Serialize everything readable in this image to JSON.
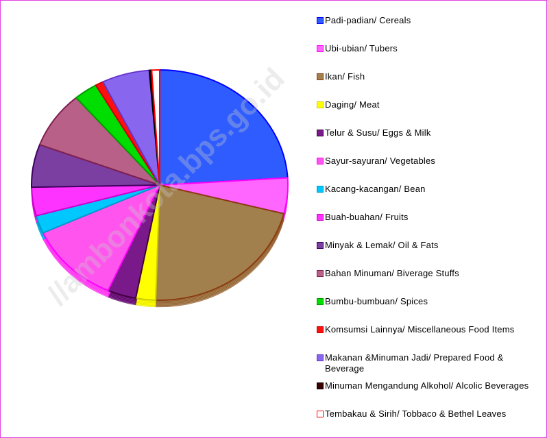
{
  "chart_data": {
    "type": "pie",
    "watermark": "//ambonkota.bps.go.id",
    "categories": [
      "Padi-padian/ Cereals",
      "Ubi-ubian/ Tubers",
      "Ikan/ Fish",
      "Daging/ Meat",
      "Telur & Susu/ Eggs & Milk",
      "Sayur-sayuran/ Vegetables",
      "Kacang-kacangan/ Bean",
      "Buah-buahan/ Fruits",
      "Minyak & Lemak/ Oil & Fats",
      "Bahan Minuman/ Biverage Stuffs",
      "Bumbu-bumbuan/ Spices",
      "Komsumsi Lainnya/ Miscellaneous Food Items",
      "Makanan &Minuman Jadi/ Prepared Food & Beverage",
      "Minuman Mengandung Alkohol/ Alcolic Beverages",
      "Tembakau & Sirih/ Tobbaco & Bethel Leaves"
    ],
    "values": [
      24,
      5,
      21.5,
      2.5,
      3.6,
      11.6,
      2.5,
      4,
      6,
      8,
      3,
      1,
      6,
      0.3,
      1
    ],
    "colors": [
      "#2f5cff",
      "#ff66ff",
      "#a2804e",
      "#ffff00",
      "#7a1a8a",
      "#ff55ee",
      "#00c8ff",
      "#ff33ff",
      "#7a3fa0",
      "#b86088",
      "#00dd00",
      "#ff1010",
      "#8866ee",
      "#3a0000",
      "#ffffff"
    ],
    "edge_colors": [
      "#0000ff",
      "#ff00ff",
      "#8b3a10",
      "#cccc00",
      "#400040",
      "#ff00ff",
      "#009acc",
      "#cc00cc",
      "#400060",
      "#802050",
      "#009900",
      "#cc0000",
      "#6633cc",
      "#000000",
      "#ff0000"
    ]
  }
}
